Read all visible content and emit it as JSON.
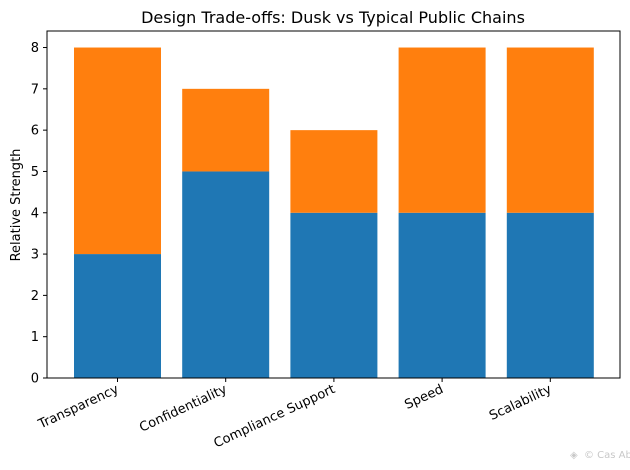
{
  "chart_data": {
    "type": "bar",
    "stacked": true,
    "title": "Design Trade-offs: Dusk vs Typical Public Chains",
    "xlabel": "",
    "ylabel": "Relative Strength",
    "ylim": [
      0,
      8.4
    ],
    "yticks": [
      0,
      1,
      2,
      3,
      4,
      5,
      6,
      7,
      8
    ],
    "categories": [
      "Transparency",
      "Confidentiality",
      "Compliance Support",
      "Speed",
      "Scalability"
    ],
    "series": [
      {
        "values": [
          3,
          5,
          4,
          4,
          4
        ],
        "color": "#1f77b4"
      },
      {
        "values": [
          5,
          2,
          2,
          4,
          4
        ],
        "color": "#ff7f0e"
      }
    ],
    "grid": false,
    "legend": "none"
  },
  "watermark": "© Cas Abbé"
}
